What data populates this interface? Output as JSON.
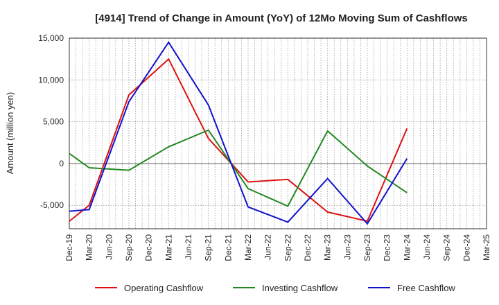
{
  "chart_data": {
    "type": "line",
    "title": "[4914]  Trend of Change in Amount (YoY) of 12Mo Moving Sum of Cashflows",
    "xlabel": "",
    "ylabel": "Amount (million yen)",
    "ylim": [
      -7800,
      15000
    ],
    "yticks": [
      15000,
      10000,
      5000,
      0,
      -5000
    ],
    "ytick_labels": [
      "15,000",
      "10,000",
      "5,000",
      "0",
      "-5,000"
    ],
    "categories": [
      "Dec-19",
      "Mar-20",
      "Jun-20",
      "Sep-20",
      "Dec-20",
      "Mar-21",
      "Jun-21",
      "Sep-21",
      "Dec-21",
      "Mar-22",
      "Jun-22",
      "Sep-22",
      "Dec-22",
      "Mar-23",
      "Jun-23",
      "Sep-23",
      "Dec-23",
      "Mar-24",
      "Jun-24",
      "Sep-24",
      "Dec-24",
      "Mar-25"
    ],
    "grid": true,
    "legend_position": "bottom",
    "series": [
      {
        "name": "Operating Cashflow",
        "color": "#dd1111",
        "values": [
          -6900,
          -5000,
          null,
          8200,
          null,
          12500,
          null,
          3000,
          null,
          -2200,
          null,
          -1900,
          null,
          -5800,
          null,
          -6900,
          null,
          4200,
          null,
          null,
          null,
          null
        ]
      },
      {
        "name": "Investing Cashflow",
        "color": "#228822",
        "values": [
          1200,
          -500,
          null,
          -800,
          null,
          2000,
          null,
          4000,
          null,
          -3000,
          null,
          -5100,
          null,
          3900,
          null,
          -300,
          null,
          -3500,
          null,
          null,
          null,
          null
        ]
      },
      {
        "name": "Free Cashflow",
        "color": "#1111cc",
        "values": [
          -5700,
          -5500,
          null,
          7400,
          null,
          14500,
          null,
          7000,
          null,
          -5200,
          null,
          -7000,
          null,
          -1800,
          null,
          -7200,
          null,
          600,
          null,
          null,
          null,
          null
        ]
      }
    ]
  }
}
